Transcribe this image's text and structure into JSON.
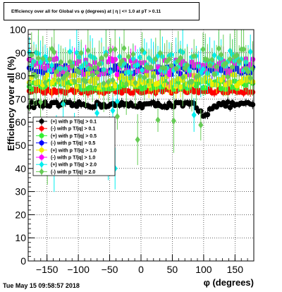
{
  "chart_data": {
    "type": "scatter",
    "title": "Efficiency over all for Global vs φ (degrees) at | η | <= 1.0 at pT > 0.11",
    "xlabel": "φ (degrees)",
    "ylabel": "Efficiency over all (%)",
    "xlim": [
      -180,
      180
    ],
    "ylim": [
      0,
      100
    ],
    "x_ticks": [
      "−150",
      "−100",
      "−50",
      "0",
      "50",
      "100",
      "150"
    ],
    "y_ticks": [
      "0",
      "10",
      "20",
      "30",
      "40",
      "50",
      "60",
      "70",
      "80",
      "90",
      "100"
    ],
    "grid": true,
    "legend_position": "left-middle",
    "series": [
      {
        "name": "(+) with p T/|q| > 0.1",
        "color": "#000000",
        "marker": "circle",
        "mean": 67.5,
        "noise": 1.2,
        "err": 1.5,
        "dip": true
      },
      {
        "name": "(-) with p T/|q| > 0.1",
        "color": "#ff0000",
        "marker": "circle",
        "mean": 73.5,
        "noise": 1.0,
        "err": 1.5
      },
      {
        "name": "(+) with p T/|q| > 0.5",
        "color": "#33ee33",
        "marker": "circle",
        "mean": 76.0,
        "noise": 1.8,
        "err": 2.5
      },
      {
        "name": "(-) with p T/|q| > 0.5",
        "color": "#0000ff",
        "marker": "circle",
        "mean": 82.5,
        "noise": 2.0,
        "err": 3.0
      },
      {
        "name": "(+) with p T/|q| > 1.0",
        "color": "#eeee00",
        "marker": "circle",
        "mean": 78.0,
        "noise": 3.0,
        "err": 4.0
      },
      {
        "name": "(-) with p T/|q| > 1.0",
        "color": "#ff00ff",
        "marker": "circle",
        "mean": 84.0,
        "noise": 3.5,
        "err": 5.0
      },
      {
        "name": "(+) with p T/|q| > 2.0",
        "color": "#00eeee",
        "marker": "diamond",
        "mean": 86.0,
        "noise": 5.0,
        "err": 8.0
      },
      {
        "name": "(-) with p T/|q| > 2.0",
        "color": "#66cc55",
        "marker": "diamond",
        "mean": 84.0,
        "noise": 8.0,
        "err": 10.0
      }
    ]
  },
  "footer": "Tue May 15 09:58:57 2018"
}
